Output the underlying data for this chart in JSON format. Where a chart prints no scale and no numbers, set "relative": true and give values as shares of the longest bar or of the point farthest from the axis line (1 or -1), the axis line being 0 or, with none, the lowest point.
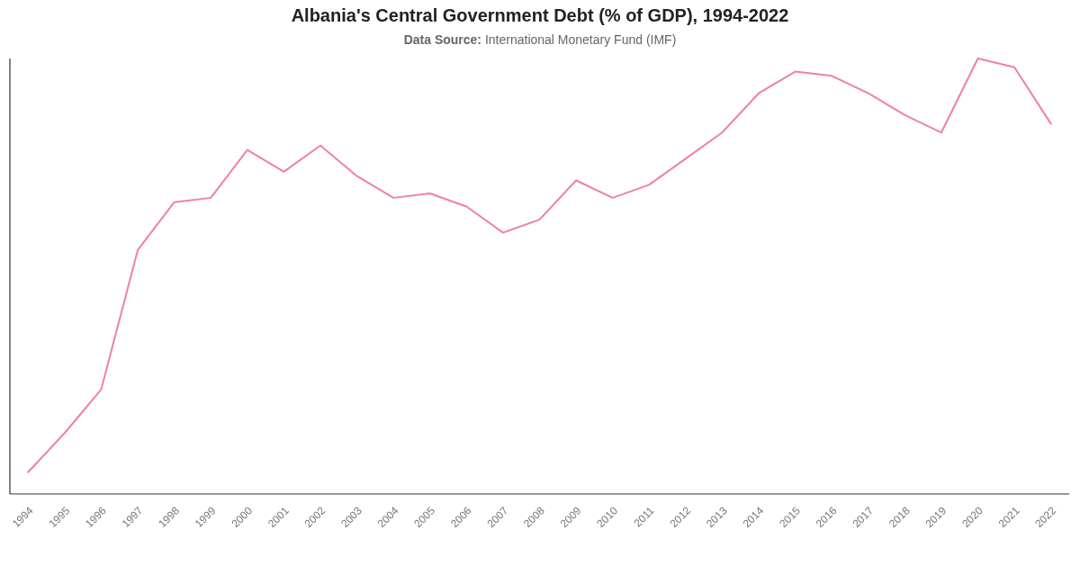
{
  "chart_data": {
    "type": "line",
    "title": "Albania's Central Government Debt (% of GDP), 1994-2022",
    "subtitle": "Data Source: International Monetary Fund (IMF)",
    "relative": true,
    "categories": [
      "1994",
      "1995",
      "1996",
      "1997",
      "1998",
      "1999",
      "2000",
      "2001",
      "2002",
      "2003",
      "2004",
      "2005",
      "2006",
      "2007",
      "2008",
      "2009",
      "2010",
      "2011",
      "2012",
      "2013",
      "2014",
      "2015",
      "2016",
      "2017",
      "2018",
      "2019",
      "2020",
      "2021",
      "2022"
    ],
    "color": "#f07fa8",
    "values": [
      0.05,
      0.14,
      0.24,
      0.56,
      0.67,
      0.68,
      0.79,
      0.74,
      0.8,
      0.73,
      0.68,
      0.69,
      0.66,
      0.6,
      0.63,
      0.72,
      0.68,
      0.71,
      0.77,
      0.83,
      0.92,
      0.97,
      0.96,
      0.92,
      0.87,
      0.83,
      1,
      0.98,
      0.85
    ]
  }
}
